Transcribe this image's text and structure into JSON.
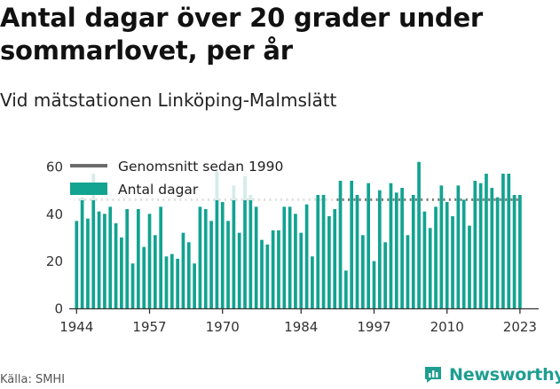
{
  "header": {
    "title": "Antal dagar över 20 grader under sommarlovet, per år",
    "subtitle": "Vid mätstationen Linköping-Malmslätt"
  },
  "footer": {
    "source": "Källa: SMHI",
    "brand": "Newsworthy"
  },
  "colors": {
    "bar": "#12a391",
    "bar_faded": "#d3ece8",
    "average_line": "#777777",
    "average_line_faded": "#dddddd",
    "axis": "#333333",
    "brand": "#1e9e91"
  },
  "chart_data": {
    "type": "bar",
    "title": "Antal dagar över 20 grader under sommarlovet, per år",
    "subtitle": "Vid mätstationen Linköping-Malmslätt",
    "xlabel": "",
    "ylabel": "",
    "ylim": [
      0,
      60
    ],
    "yticks": [
      0,
      20,
      40,
      60
    ],
    "xtick_labels": [
      "1944",
      "1957",
      "1970",
      "1984",
      "1997",
      "2010",
      "2023"
    ],
    "grid": false,
    "legend_position": "top-left",
    "legend": [
      "Genomsnitt sedan 1990",
      "Antal dagar"
    ],
    "x": [
      1944,
      1945,
      1946,
      1947,
      1948,
      1949,
      1950,
      1951,
      1952,
      1953,
      1954,
      1955,
      1956,
      1957,
      1958,
      1959,
      1960,
      1961,
      1962,
      1963,
      1964,
      1965,
      1966,
      1967,
      1968,
      1969,
      1970,
      1971,
      1972,
      1973,
      1974,
      1975,
      1976,
      1977,
      1978,
      1979,
      1980,
      1981,
      1982,
      1983,
      1984,
      1985,
      1986,
      1987,
      1988,
      1989,
      1990,
      1991,
      1992,
      1993,
      1994,
      1995,
      1996,
      1997,
      1998,
      1999,
      2000,
      2001,
      2002,
      2003,
      2004,
      2005,
      2006,
      2007,
      2008,
      2009,
      2010,
      2011,
      2012,
      2013,
      2014,
      2015,
      2016,
      2017,
      2018,
      2019,
      2020,
      2021,
      2022,
      2023
    ],
    "series": [
      {
        "name": "Antal dagar",
        "values": [
          37,
          47,
          38,
          57,
          41,
          40,
          43,
          36,
          30,
          42,
          19,
          42,
          26,
          40,
          31,
          43,
          22,
          23,
          21,
          32,
          28,
          19,
          43,
          42,
          37,
          58,
          45,
          37,
          52,
          32,
          56,
          48,
          43,
          29,
          27,
          33,
          33,
          43,
          43,
          40,
          32,
          44,
          22,
          48,
          48,
          39,
          42,
          54,
          16,
          54,
          48,
          31,
          53,
          20,
          50,
          28,
          53,
          49,
          51,
          31,
          48,
          62,
          41,
          34,
          43,
          52,
          45,
          39,
          52,
          46,
          35,
          54,
          53,
          57,
          51,
          47,
          57,
          57,
          48,
          48
        ]
      },
      {
        "name": "Genomsnitt sedan 1990",
        "value": 46,
        "from": 1990,
        "to": 2023
      }
    ]
  }
}
